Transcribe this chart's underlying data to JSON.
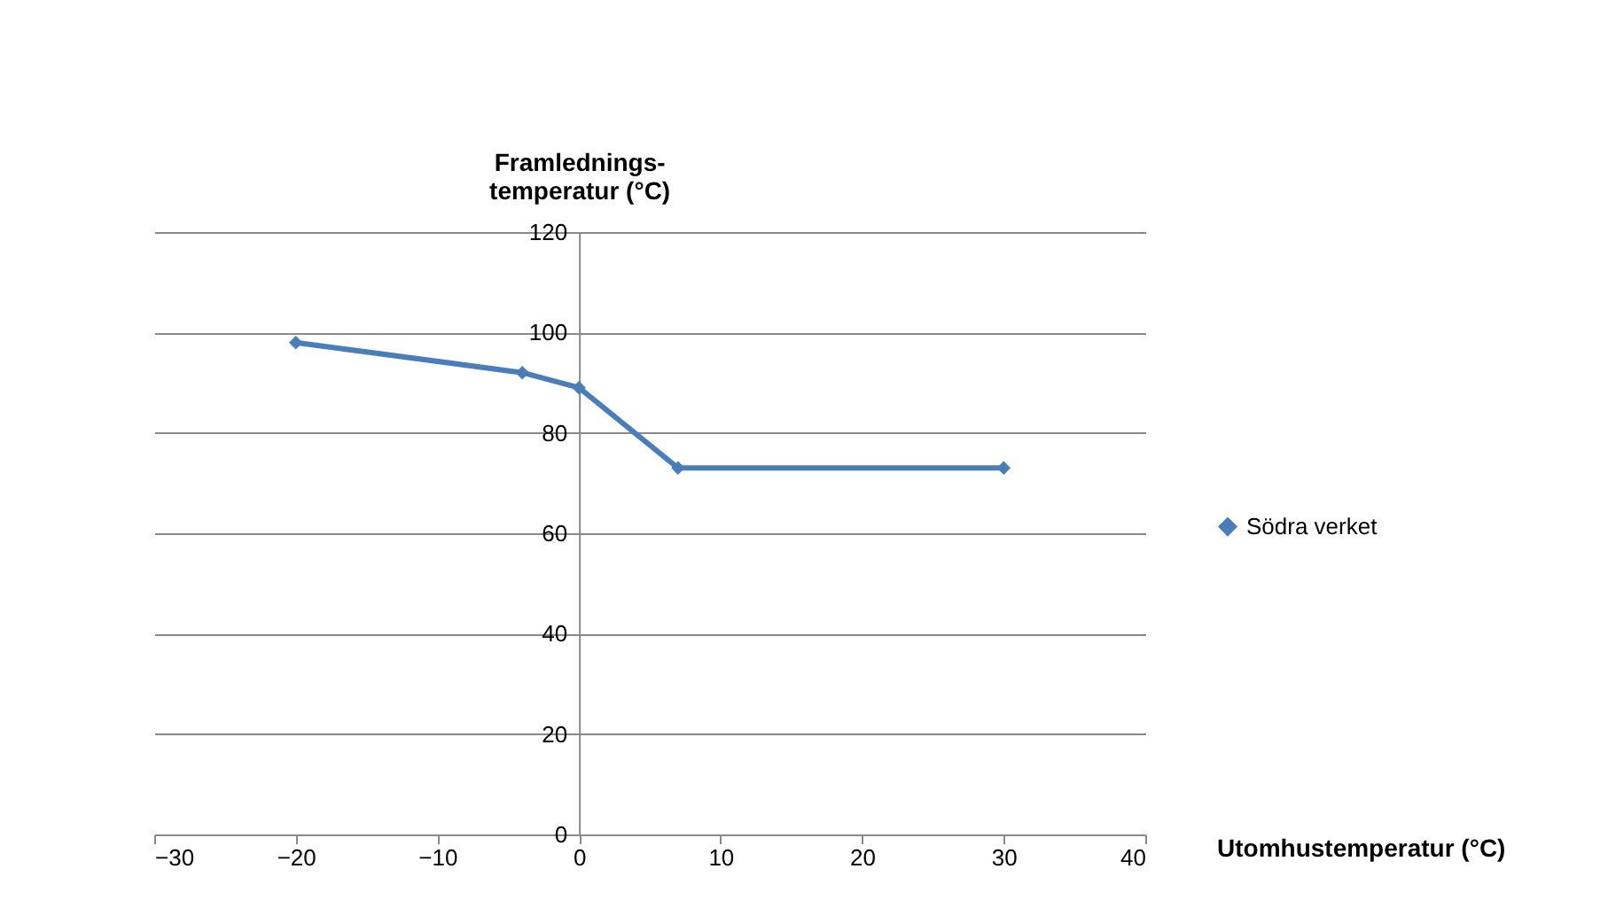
{
  "chart_data": {
    "type": "line",
    "xlabel": "Utomhustemperatur (°C)",
    "ylabel": "Framlednings-temperatur (°C)",
    "x": [
      -20,
      -4,
      0,
      7,
      30
    ],
    "series": [
      {
        "name": "Södra verket",
        "color": "#4a7ebb",
        "values": [
          98,
          92,
          89,
          73,
          73
        ]
      }
    ],
    "xlim": [
      -30,
      40
    ],
    "xticks": [
      -30,
      -20,
      -10,
      0,
      10,
      20,
      30,
      40
    ],
    "ylim": [
      0,
      120
    ],
    "yticks": [
      0,
      20,
      40,
      60,
      80,
      100,
      120
    ],
    "grid": "y",
    "legend": "right",
    "marker": "diamond",
    "line_style": "solid"
  }
}
